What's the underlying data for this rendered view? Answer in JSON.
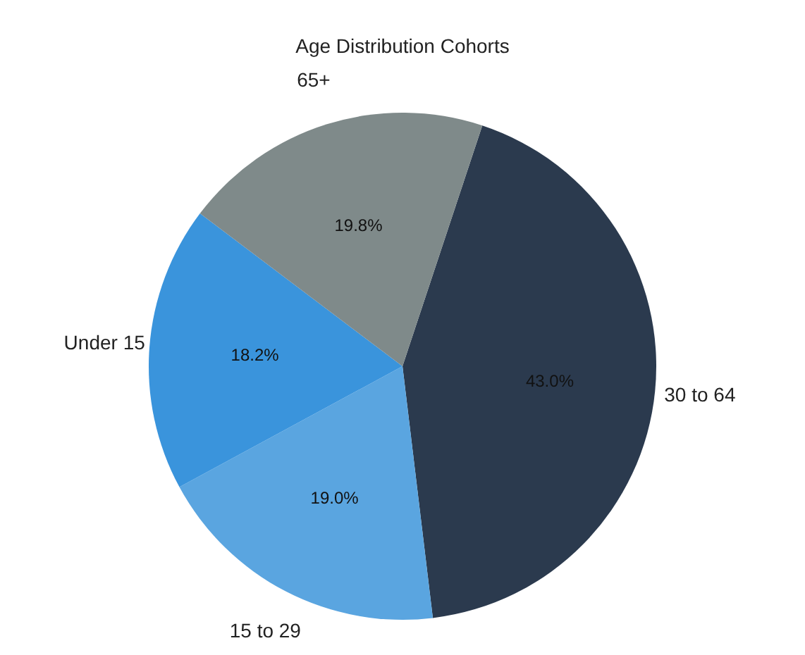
{
  "chart_data": {
    "type": "pie",
    "title": "Age Distribution Cohorts",
    "categories": [
      "30 to 64",
      "15 to 29",
      "Under 15",
      "65+"
    ],
    "values": [
      43.0,
      19.0,
      18.2,
      19.8
    ],
    "value_labels": [
      "43.0%",
      "19.0%",
      "18.2%",
      "19.8%"
    ],
    "colors": [
      "#2b3a4e",
      "#5aa5e0",
      "#3a94dc",
      "#7f8a8a"
    ],
    "legend": false
  }
}
